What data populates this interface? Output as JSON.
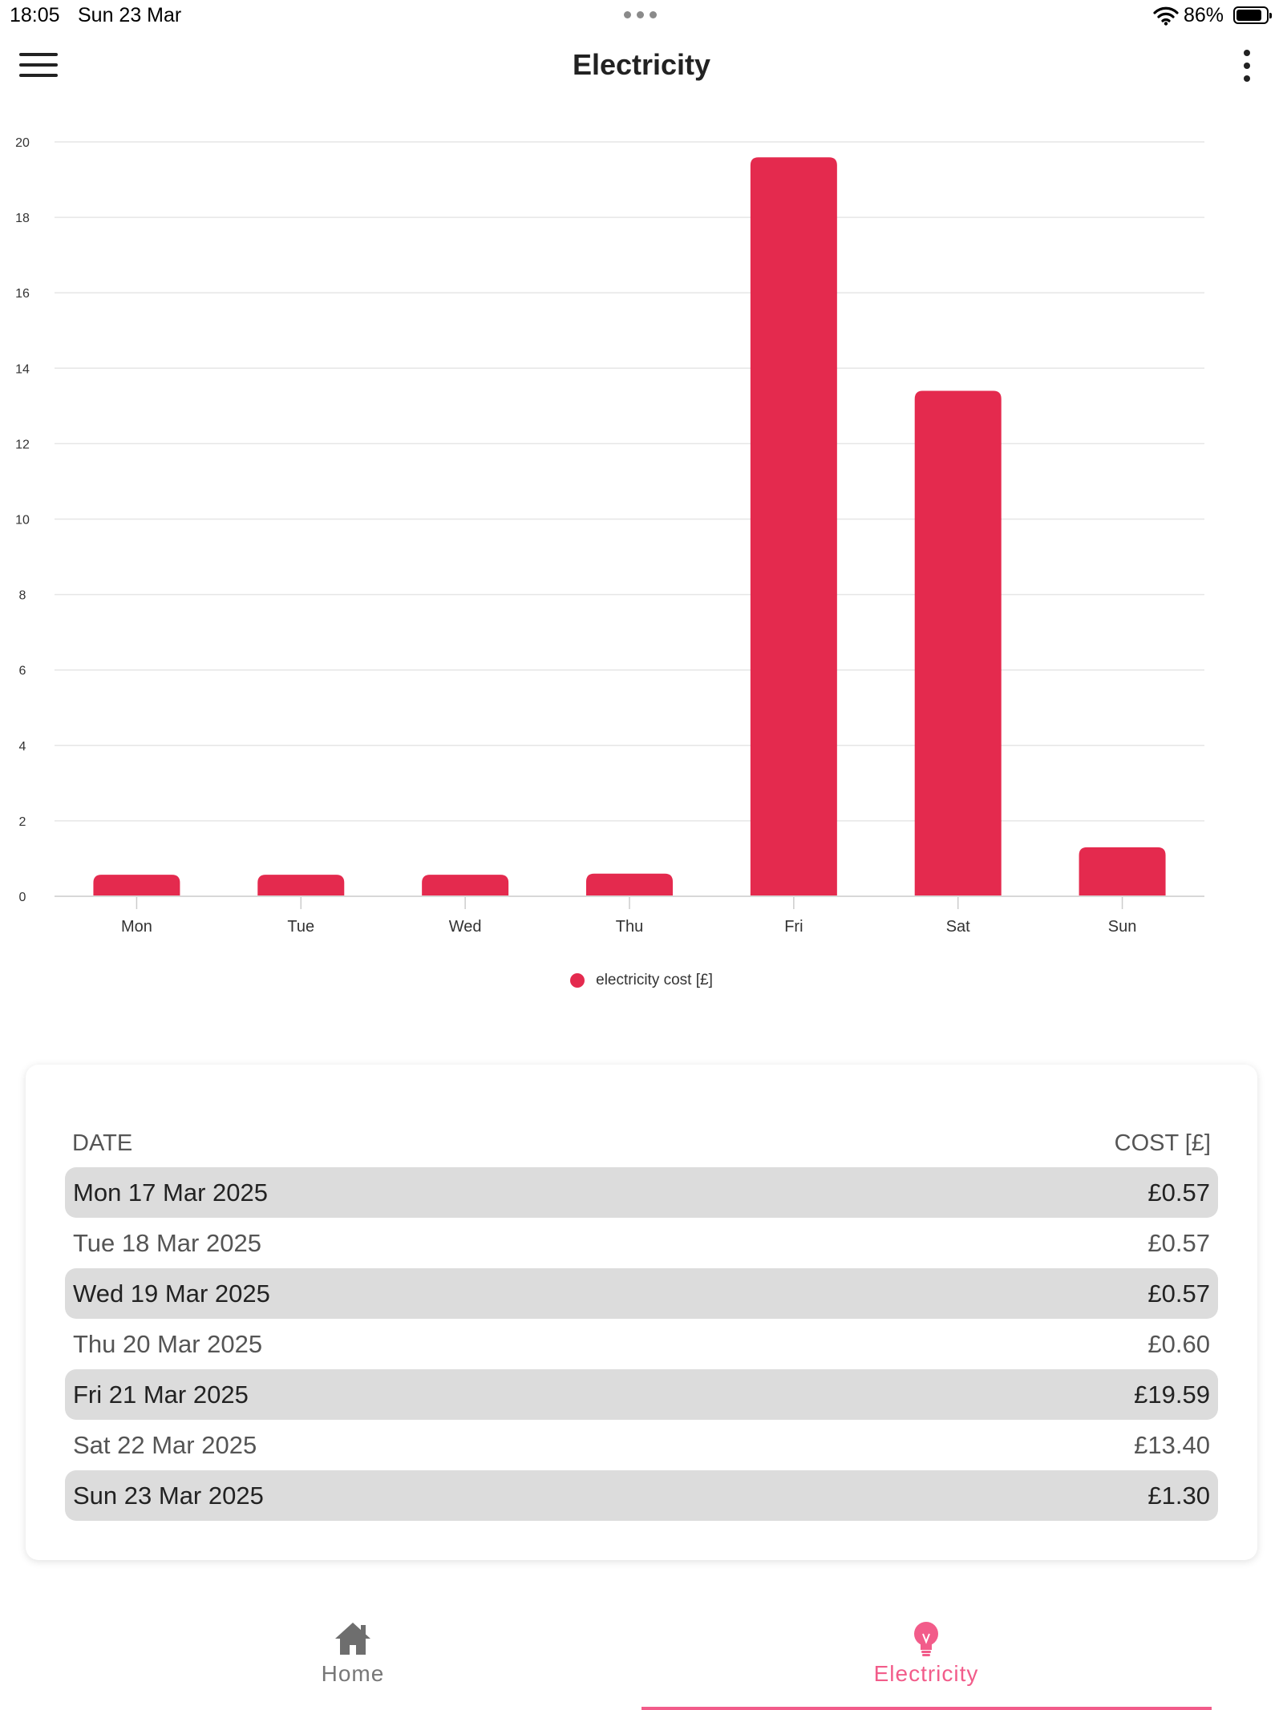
{
  "status_bar": {
    "time": "18:05",
    "date": "Sun 23 Mar",
    "battery": "86%",
    "battery_level": 0.86
  },
  "header": {
    "title": "Electricity"
  },
  "colors": {
    "accent": "#e42a4e",
    "tab_active": "#f25c8a"
  },
  "chart_data": {
    "type": "bar",
    "categories": [
      "Mon",
      "Tue",
      "Wed",
      "Thu",
      "Fri",
      "Sat",
      "Sun"
    ],
    "series": [
      {
        "name": "electricity cost [£]",
        "values": [
          0.57,
          0.57,
          0.57,
          0.6,
          19.59,
          13.4,
          1.3
        ]
      }
    ],
    "y_ticks": [
      "0",
      "2",
      "4",
      "6",
      "8",
      "10",
      "12",
      "14",
      "16",
      "18",
      "20"
    ],
    "ylim": [
      0,
      20
    ],
    "grid": true,
    "legend_position": "bottom-center"
  },
  "table": {
    "headers": {
      "date": "DATE",
      "cost": "COST [£]"
    },
    "rows": [
      {
        "date": "Mon 17 Mar 2025",
        "cost": "£0.57"
      },
      {
        "date": "Tue 18 Mar 2025",
        "cost": "£0.57"
      },
      {
        "date": "Wed 19 Mar 2025",
        "cost": "£0.57"
      },
      {
        "date": "Thu 20 Mar 2025",
        "cost": "£0.60"
      },
      {
        "date": "Fri 21 Mar 2025",
        "cost": "£19.59"
      },
      {
        "date": "Sat 22 Mar 2025",
        "cost": "£13.40"
      },
      {
        "date": "Sun 23 Mar 2025",
        "cost": "£1.30"
      }
    ]
  },
  "tabs": [
    {
      "label": "Home",
      "icon": "home-icon",
      "active": false
    },
    {
      "label": "Electricity",
      "icon": "lightbulb-icon",
      "active": true
    }
  ]
}
